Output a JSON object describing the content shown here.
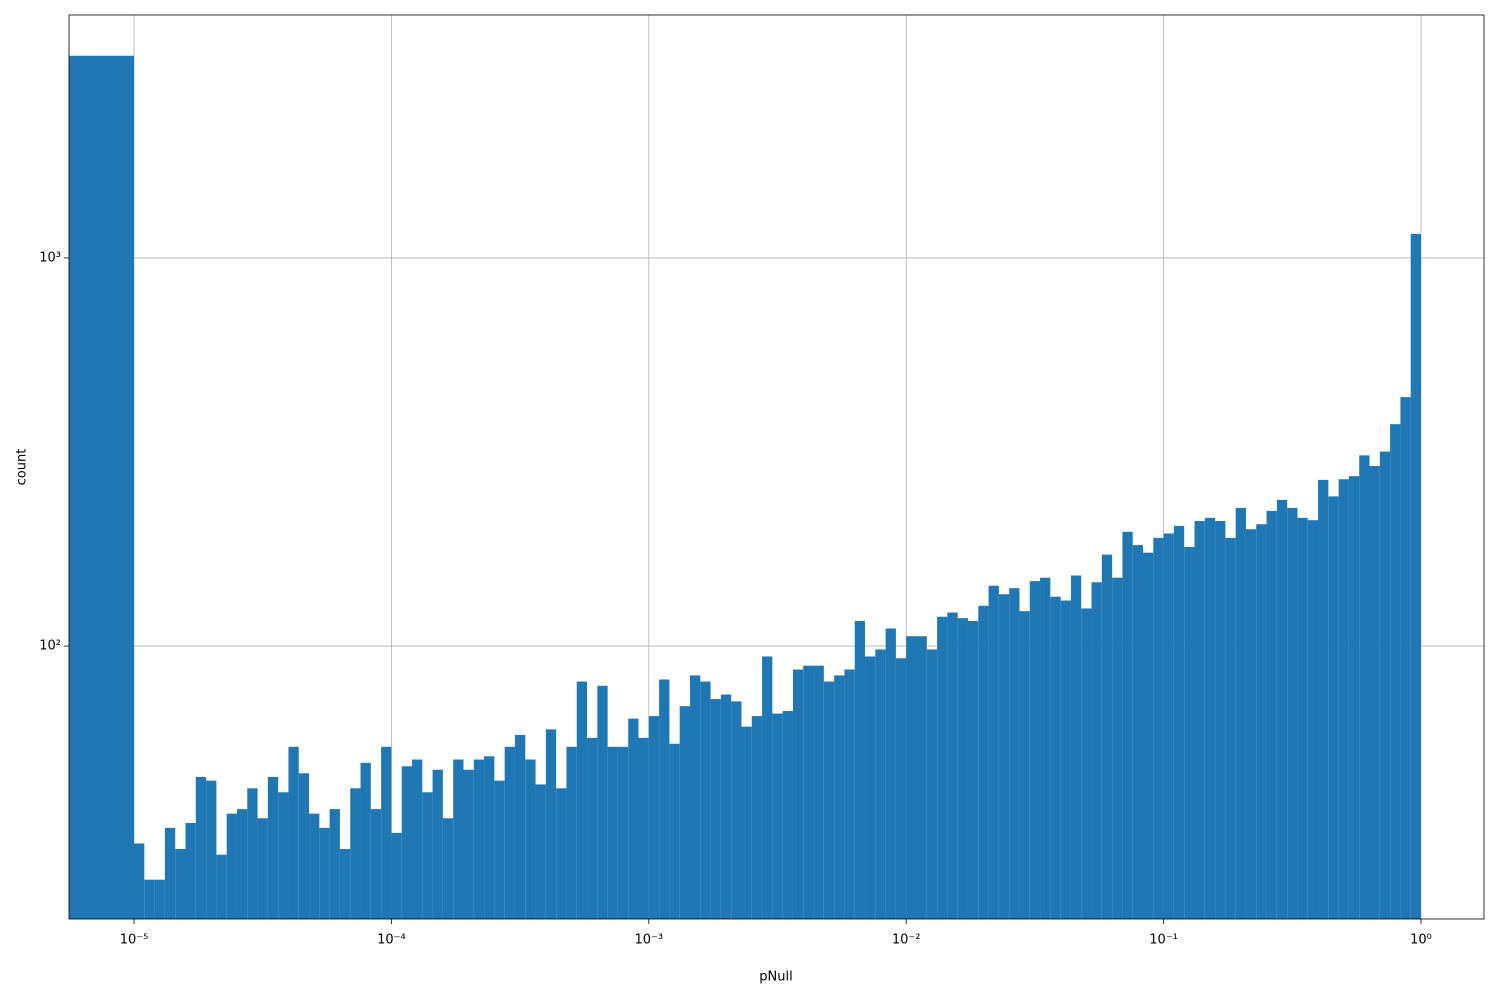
{
  "chart_data": {
    "type": "histogram",
    "x_label": "pNull",
    "y_label": "count",
    "color": "#1f77b4",
    "xscale": "log",
    "yscale": "log",
    "grid": true,
    "xlim": [
      5.59e-06,
      1.757
    ],
    "ylim": [
      19.8,
      4227
    ],
    "xticks": [
      {
        "value": 1e-05,
        "label": "10⁻⁵"
      },
      {
        "value": 0.0001,
        "label": "10⁻⁴"
      },
      {
        "value": 0.001,
        "label": "10⁻³"
      },
      {
        "value": 0.01,
        "label": "10⁻²"
      },
      {
        "value": 0.1,
        "label": "10⁻¹"
      },
      {
        "value": 1,
        "label": "10⁰"
      }
    ],
    "yticks": [
      {
        "value": 100,
        "label": "10²"
      },
      {
        "value": 1000,
        "label": "10³"
      }
    ],
    "bins": [
      0,
      1e-05,
      1.0965e-05,
      1.2023e-05,
      1.3183e-05,
      1.4454e-05,
      1.5849e-05,
      1.7378e-05,
      1.9055e-05,
      2.0893e-05,
      2.2909e-05,
      2.5119e-05,
      2.7542e-05,
      3.02e-05,
      3.3113e-05,
      3.6308e-05,
      3.9811e-05,
      4.3652e-05,
      4.7863e-05,
      5.2481e-05,
      5.7544e-05,
      6.3096e-05,
      6.9183e-05,
      7.5858e-05,
      8.3176e-05,
      9.1201e-05,
      0.0001,
      0.00010965,
      0.00012023,
      0.00013183,
      0.00014454,
      0.00015849,
      0.00017378,
      0.00019055,
      0.00020893,
      0.00022909,
      0.00025119,
      0.00027542,
      0.000302,
      0.00033113,
      0.00036308,
      0.00039811,
      0.00043652,
      0.00047863,
      0.00052481,
      0.00057544,
      0.00063096,
      0.00069183,
      0.00075858,
      0.00083176,
      0.00091201,
      0.001,
      0.0010965,
      0.0012023,
      0.0013183,
      0.0014454,
      0.0015849,
      0.0017378,
      0.0019055,
      0.0020893,
      0.0022909,
      0.0025119,
      0.0027542,
      0.00302,
      0.0033113,
      0.0036308,
      0.0039811,
      0.0043652,
      0.0047863,
      0.0052481,
      0.0057544,
      0.0063096,
      0.0069183,
      0.0075858,
      0.0083176,
      0.0091201,
      0.01,
      0.010965,
      0.012023,
      0.013183,
      0.014454,
      0.015849,
      0.017378,
      0.019055,
      0.020893,
      0.022909,
      0.025119,
      0.027542,
      0.0302,
      0.033113,
      0.036308,
      0.039811,
      0.043652,
      0.047863,
      0.052481,
      0.057544,
      0.063096,
      0.069183,
      0.075858,
      0.083176,
      0.091201,
      0.1,
      0.10965,
      0.12023,
      0.13183,
      0.14454,
      0.15849,
      0.17378,
      0.19055,
      0.20893,
      0.22909,
      0.25119,
      0.27542,
      0.302,
      0.33113,
      0.36308,
      0.39811,
      0.43652,
      0.47863,
      0.52481,
      0.57544,
      0.63096,
      0.69183,
      0.75858,
      0.83176,
      0.91201,
      1
    ],
    "values": [
      3319,
      31,
      25,
      25,
      34,
      30,
      35,
      46,
      45,
      29,
      37,
      38,
      43,
      36,
      46,
      42,
      55,
      47,
      37,
      34,
      38,
      30,
      43,
      50,
      38,
      55,
      33,
      49,
      51,
      42,
      48,
      36,
      51,
      48,
      51,
      52,
      45,
      55,
      59,
      51,
      44,
      61,
      43,
      55,
      81,
      58,
      79,
      55,
      55,
      65,
      58,
      66,
      82,
      56,
      70,
      84,
      81,
      73,
      75,
      72,
      62,
      66,
      94,
      67,
      68,
      87,
      89,
      89,
      81,
      84,
      87,
      116,
      94,
      98,
      111,
      93,
      106,
      106,
      98,
      119,
      122,
      118,
      116,
      127,
      143,
      136,
      141,
      123,
      147,
      150,
      134,
      131,
      152,
      125,
      146,
      172,
      150,
      197,
      182,
      174,
      190,
      195,
      204,
      180,
      210,
      214,
      210,
      190,
      227,
      200,
      206,
      223,
      238,
      227,
      214,
      211,
      268,
      243,
      269,
      274,
      310,
      291,
      317,
      373,
      438,
      1153
    ]
  }
}
